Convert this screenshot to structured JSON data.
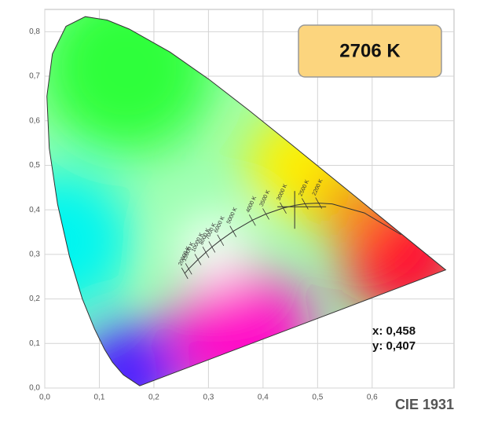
{
  "chart_data": {
    "type": "scatter",
    "title": "CIE 1931",
    "xlim": [
      0,
      0.75
    ],
    "ylim": [
      0,
      0.85
    ],
    "xticks": [
      {
        "value": 0,
        "label": "0,0"
      },
      {
        "value": 0.1,
        "label": "0,1"
      },
      {
        "value": 0.2,
        "label": "0,2"
      },
      {
        "value": 0.3,
        "label": "0,3"
      },
      {
        "value": 0.4,
        "label": "0,4"
      },
      {
        "value": 0.5,
        "label": "0,5"
      },
      {
        "value": 0.6,
        "label": "0,6"
      }
    ],
    "yticks": [
      {
        "value": 0,
        "label": "0,0"
      },
      {
        "value": 0.1,
        "label": "0,1"
      },
      {
        "value": 0.2,
        "label": "0,2"
      },
      {
        "value": 0.3,
        "label": "0,3"
      },
      {
        "value": 0.4,
        "label": "0,4"
      },
      {
        "value": 0.5,
        "label": "0,5"
      },
      {
        "value": 0.6,
        "label": "0,6"
      },
      {
        "value": 0.7,
        "label": "0,7"
      },
      {
        "value": 0.8,
        "label": "0,8"
      }
    ],
    "grid": true,
    "spectral_locus": {
      "x": [
        0.1741,
        0.144,
        0.1241,
        0.1096,
        0.0913,
        0.0687,
        0.0454,
        0.0235,
        0.0082,
        0.0039,
        0.0139,
        0.0389,
        0.0743,
        0.1142,
        0.1547,
        0.2296,
        0.3016,
        0.3731,
        0.4441,
        0.5125,
        0.5752,
        0.627,
        0.6915,
        0.7347
      ],
      "y": [
        0.005,
        0.0297,
        0.0578,
        0.0868,
        0.1327,
        0.2007,
        0.295,
        0.4127,
        0.5384,
        0.6548,
        0.7502,
        0.812,
        0.8338,
        0.8262,
        0.8059,
        0.7543,
        0.6923,
        0.6245,
        0.5547,
        0.4866,
        0.4242,
        0.3725,
        0.3083,
        0.2653
      ]
    },
    "planckian_locus": {
      "x": [
        0.2565,
        0.2637,
        0.2807,
        0.2952,
        0.3064,
        0.3221,
        0.3451,
        0.3805,
        0.4053,
        0.4369,
        0.4599,
        0.477,
        0.502,
        0.5267,
        0.5857,
        0.6528
      ],
      "y": [
        0.2577,
        0.2675,
        0.2884,
        0.3048,
        0.3166,
        0.3318,
        0.3516,
        0.3768,
        0.3907,
        0.4041,
        0.4106,
        0.4137,
        0.4152,
        0.4133,
        0.3931,
        0.3444
      ]
    },
    "isotherms": [
      {
        "label": "20000 K",
        "x": 0.2565,
        "y": 0.2577
      },
      {
        "label": "15000 K",
        "x": 0.2637,
        "y": 0.2675
      },
      {
        "label": "10000 K",
        "x": 0.2807,
        "y": 0.2884
      },
      {
        "label": "8000 K",
        "x": 0.2952,
        "y": 0.3048
      },
      {
        "label": "7000 K",
        "x": 0.3064,
        "y": 0.3166
      },
      {
        "label": "6000 K",
        "x": 0.3221,
        "y": 0.3318
      },
      {
        "label": "5000 K",
        "x": 0.3451,
        "y": 0.3516
      },
      {
        "label": "4000 K",
        "x": 0.3805,
        "y": 0.3768
      },
      {
        "label": "3500 K",
        "x": 0.4053,
        "y": 0.3907
      },
      {
        "label": "3000 K",
        "x": 0.4369,
        "y": 0.4041
      },
      {
        "label": "2500 K",
        "x": 0.477,
        "y": 0.4137
      },
      {
        "label": "2200 K",
        "x": 0.502,
        "y": 0.4152
      }
    ],
    "point": {
      "x": 0.458,
      "y": 0.407,
      "x_label": "x: 0,458",
      "y_label": "y: 0,407",
      "cct_label": "2706 K"
    }
  }
}
